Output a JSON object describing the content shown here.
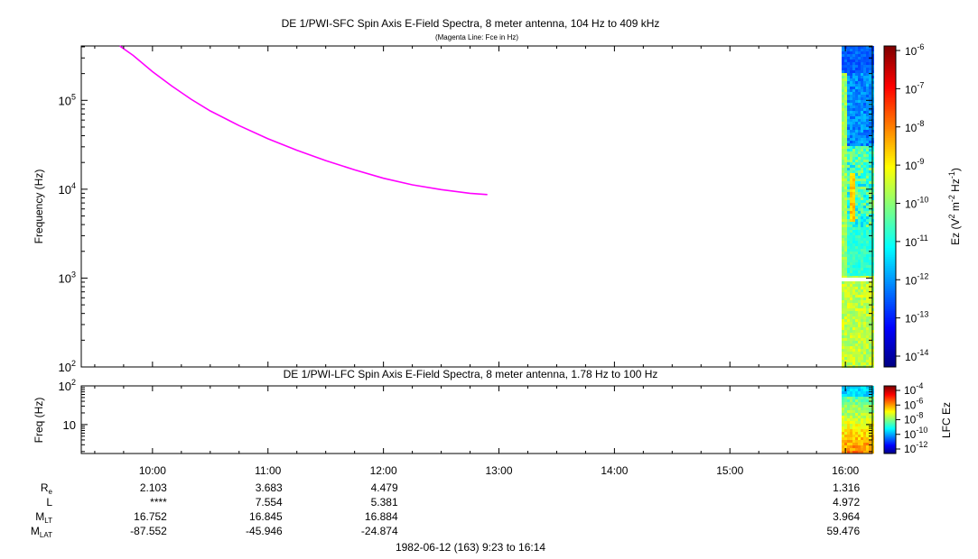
{
  "colors": {
    "fce_line": "#ff00ff",
    "background": "#ffffff",
    "axis": "#000000"
  },
  "chart_data": [
    {
      "type": "heatmap",
      "title": "DE 1/PWI-SFC  Spin Axis E-Field Spectra, 8 meter antenna, 104 Hz to 409 kHz",
      "subtitle": "(Magenta Line: Fce in Hz)",
      "ylabel": "Frequency (Hz)",
      "yscale": "log",
      "ylim": [
        100,
        409000
      ],
      "yticks": [
        {
          "base": "10",
          "exp": "2",
          "value": 100
        },
        {
          "base": "10",
          "exp": "3",
          "value": 1000
        },
        {
          "base": "10",
          "exp": "4",
          "value": 10000
        },
        {
          "base": "10",
          "exp": "5",
          "value": 100000
        }
      ],
      "xlim": [
        "09:23",
        "16:14"
      ],
      "series": [
        {
          "name": "Fce",
          "color": "#ff00ff",
          "x": [
            "09:43",
            "09:50",
            "10:00",
            "10:10",
            "10:20",
            "10:30",
            "10:45",
            "11:00",
            "11:15",
            "11:30",
            "11:45",
            "12:00",
            "12:15",
            "12:30",
            "12:45",
            "12:54"
          ],
          "y": [
            420000,
            320000,
            210000,
            145000,
            103000,
            76000,
            52000,
            37000,
            27500,
            21000,
            16500,
            13300,
            11200,
            9900,
            9000,
            8700
          ]
        }
      ],
      "colorbar": {
        "label_base": "Ez (V",
        "label_sup1": "2",
        "label_mid": " m",
        "label_sup2": "-2",
        "label_mid2": " Hz",
        "label_sup3": "-1",
        "label_end": ")",
        "ticks": [
          {
            "base": "10",
            "exp": "-6"
          },
          {
            "base": "10",
            "exp": "-7"
          },
          {
            "base": "10",
            "exp": "-8"
          },
          {
            "base": "10",
            "exp": "-9"
          },
          {
            "base": "10",
            "exp": "-10"
          },
          {
            "base": "10",
            "exp": "-11"
          },
          {
            "base": "10",
            "exp": "-12"
          },
          {
            "base": "10",
            "exp": "-13"
          },
          {
            "base": "10",
            "exp": "-14"
          }
        ],
        "range": [
          1e-14,
          1e-06
        ],
        "scale": "log"
      },
      "grid": false
    },
    {
      "type": "heatmap",
      "title": "DE 1/PWI-LFC  Spin Axis E-Field Spectra, 8 meter antenna, 1.78 Hz to 100 Hz",
      "ylabel": "Freq (Hz)",
      "yscale": "log",
      "ylim": [
        1.78,
        100
      ],
      "yticks": [
        {
          "base": "10",
          "exp": "",
          "value": 10
        },
        {
          "base": "10",
          "exp": "2",
          "value": 100
        }
      ],
      "xlim": [
        "09:23",
        "16:14"
      ],
      "colorbar": {
        "label": "LFC Ez",
        "ticks": [
          {
            "base": "10",
            "exp": "-4"
          },
          {
            "base": "10",
            "exp": "-6"
          },
          {
            "base": "10",
            "exp": "-8"
          },
          {
            "base": "10",
            "exp": "-10"
          },
          {
            "base": "10",
            "exp": "-12"
          }
        ],
        "range": [
          1e-12,
          0.0001
        ],
        "scale": "log"
      },
      "grid": false
    }
  ],
  "time_axis": {
    "labels": [
      "10:00",
      "11:00",
      "12:00",
      "13:00",
      "14:00",
      "15:00",
      "16:00"
    ]
  },
  "ephemeris": {
    "rows": [
      {
        "label": "R",
        "sub": "e",
        "values": [
          "2.103",
          "3.683",
          "4.479",
          "",
          "",
          "",
          "1.316"
        ]
      },
      {
        "label": "L",
        "sub": "",
        "values": [
          "****",
          "7.554",
          "5.381",
          "",
          "",
          "",
          "4.972"
        ]
      },
      {
        "label": "M",
        "sub": "LT",
        "values": [
          "16.752",
          "16.845",
          "16.884",
          "",
          "",
          "",
          "3.964"
        ]
      },
      {
        "label": "M",
        "sub": "LAT",
        "values": [
          "-87.552",
          "-45.946",
          "-24.874",
          "",
          "",
          "",
          "59.476"
        ]
      }
    ]
  },
  "footer": "1982-06-12 (163) 9:23 to 16:14"
}
